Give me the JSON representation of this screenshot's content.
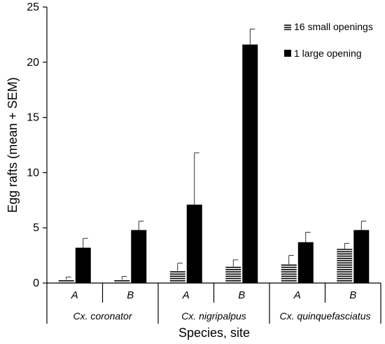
{
  "chart_data": {
    "type": "bar",
    "title": "",
    "xlabel": "Species, site",
    "ylabel": "Egg rafts (mean + SEM)",
    "ylim": [
      0,
      25
    ],
    "yticks": [
      "0",
      "5",
      "10",
      "15",
      "20",
      "25"
    ],
    "grid": false,
    "legend_position": "top-right",
    "species": [
      "Cx. coronator",
      "Cx. nigripalpus",
      "Cx. quinquefasciatus"
    ],
    "categories": [
      "A",
      "B",
      "A",
      "B",
      "A",
      "B"
    ],
    "series": [
      {
        "name": "16 small openings",
        "pattern": "horizontal-stripes",
        "values": [
          0.3,
          0.3,
          1.1,
          1.5,
          1.7,
          3.1
        ],
        "errors": [
          0.25,
          0.3,
          0.7,
          0.6,
          0.8,
          0.5
        ]
      },
      {
        "name": "1 large opening",
        "pattern": "solid",
        "values": [
          3.2,
          4.8,
          7.1,
          21.6,
          3.7,
          4.8
        ],
        "errors": [
          0.85,
          0.8,
          4.7,
          1.4,
          0.9,
          0.8
        ]
      }
    ],
    "colors": {
      "bar": "#000000",
      "stripe_bg": "#ffffff",
      "axis": "#000000"
    }
  }
}
